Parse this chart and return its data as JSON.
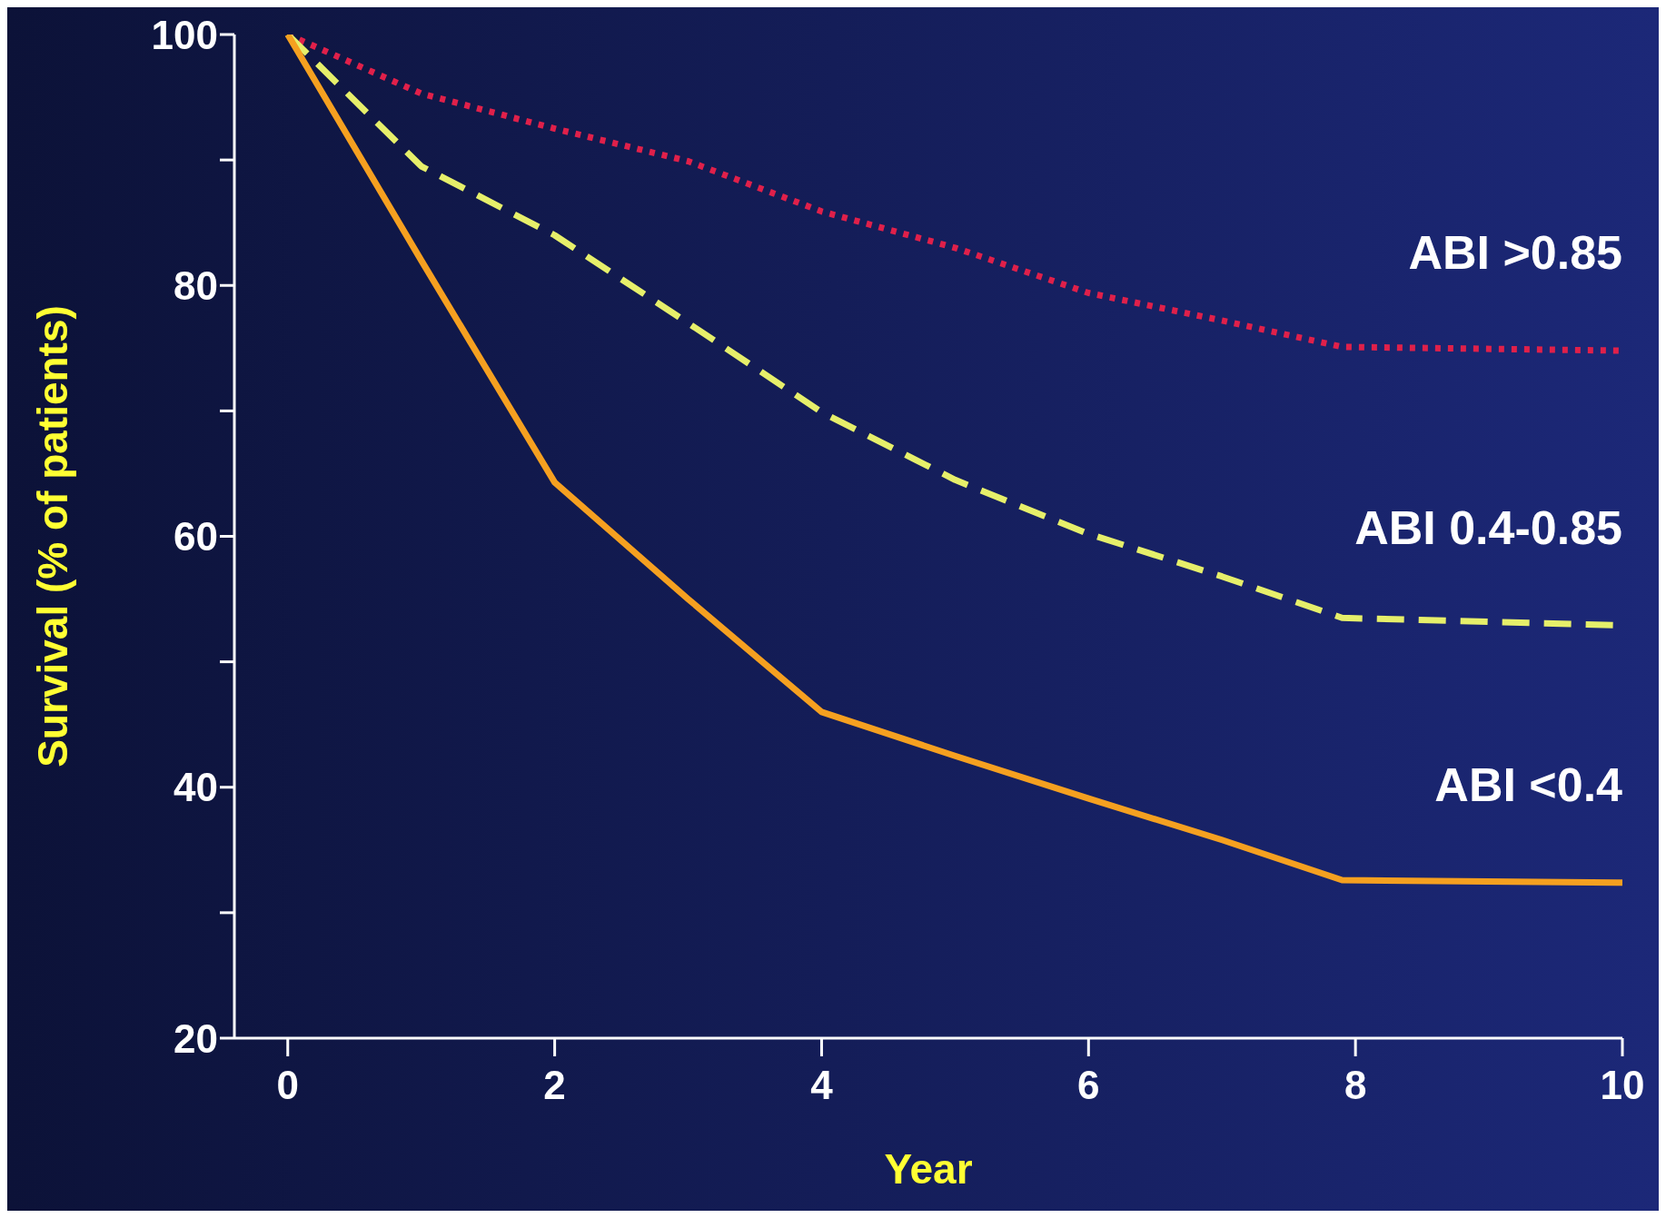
{
  "chart_data": {
    "type": "line",
    "xlabel": "Year",
    "ylabel": "Survival (% of patients)",
    "x": [
      0,
      1,
      2,
      3,
      4,
      5,
      6,
      7,
      7.9,
      10
    ],
    "xlim": [
      -0.4,
      10
    ],
    "xticks": [
      0,
      2,
      4,
      6,
      8,
      10
    ],
    "ylim": [
      20,
      100
    ],
    "yticks": [
      20,
      {
        "value": 30,
        "label": null
      },
      40,
      {
        "value": 50,
        "label": null
      },
      60,
      {
        "value": 70,
        "label": null
      },
      80,
      {
        "value": 90,
        "label": null
      },
      100
    ],
    "marker": "none",
    "series": [
      {
        "name": "ABI >0.85",
        "color": "#e0204a",
        "line_style": "dotted",
        "values": [
          100,
          95.3,
          92.5,
          89.9,
          85.9,
          83,
          79.4,
          77.2,
          75.1,
          74.8
        ]
      },
      {
        "name": "ABI 0.4-0.85",
        "color": "#e6ef6a",
        "line_style": "dashed",
        "values": [
          100,
          89.5,
          84,
          77,
          69.9,
          64.5,
          60.2,
          56.8,
          53.5,
          52.9
        ]
      },
      {
        "name": "ABI <0.4",
        "color": "#f5a020",
        "line_style": "solid",
        "values": [
          100,
          82,
          64.3,
          55,
          46,
          42.5,
          39.1,
          35.8,
          32.6,
          32.4
        ]
      }
    ]
  }
}
